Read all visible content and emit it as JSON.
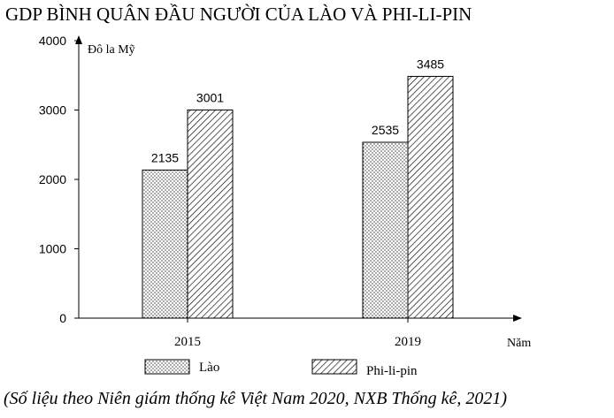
{
  "chart_data": {
    "type": "bar",
    "title": "GDP BÌNH QUÂN ĐẦU NGƯỜI CỦA LÀO VÀ PHI-LI-PIN",
    "categories": [
      "2015",
      "2019"
    ],
    "series": [
      {
        "name": "Lào",
        "values": [
          2135,
          2535
        ],
        "pattern": "dots"
      },
      {
        "name": "Phi-li-pin",
        "values": [
          3001,
          3485
        ],
        "pattern": "diagonal-hatch"
      }
    ],
    "xlabel": "Năm",
    "ylabel": "Đô la Mỹ",
    "ylim": [
      0,
      4000
    ],
    "yticks": [
      "0",
      "1000",
      "2000",
      "3000",
      "4000"
    ],
    "grid": false,
    "legend_position": "bottom",
    "bar_color": "#ffffff",
    "line_color": "#000000",
    "source": "(Số liệu theo Niên giám thống kê Việt Nam 2020, NXB Thống kê, 2021)"
  }
}
